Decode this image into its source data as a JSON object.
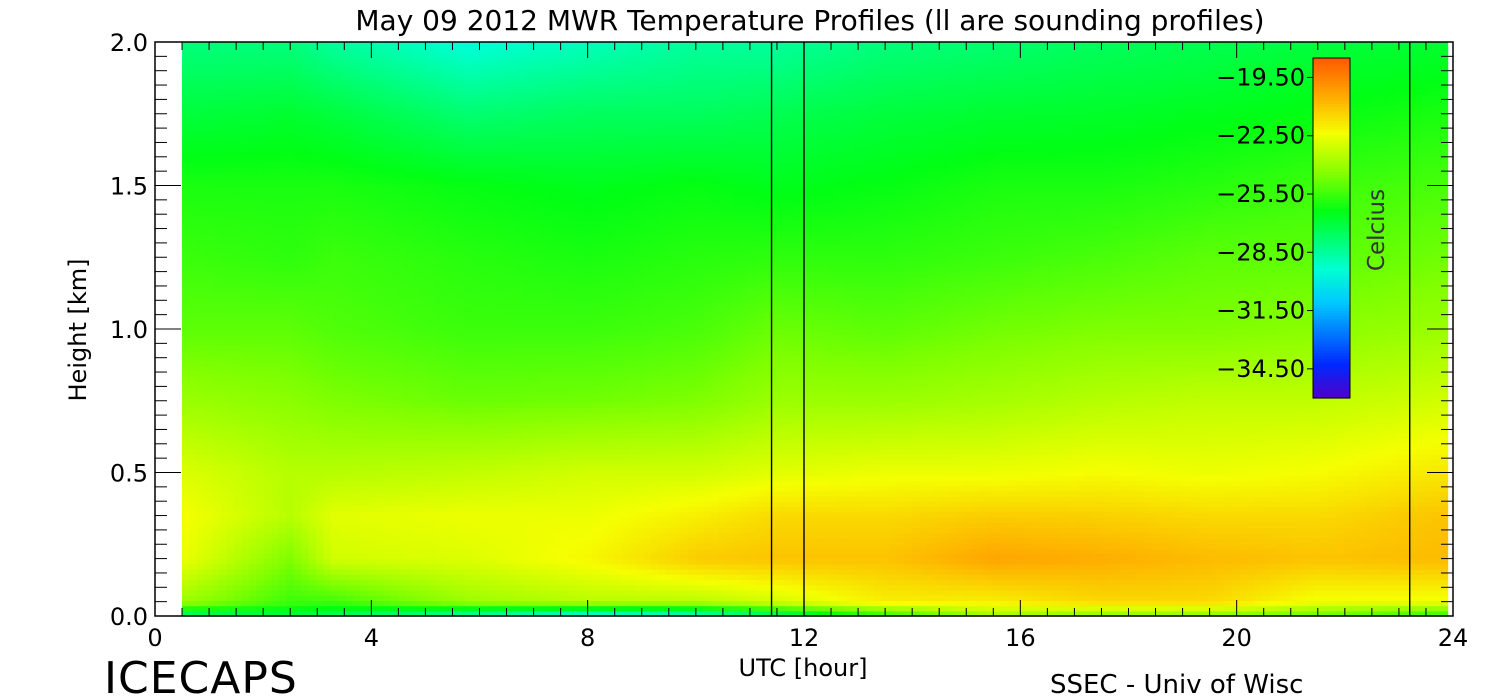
{
  "chart_data": {
    "type": "heatmap",
    "title": "May 09 2012 MWR Temperature Profiles (ll are sounding profiles)",
    "xlabel": "UTC [hour]",
    "ylabel": "Height [km]",
    "xlim": [
      0,
      24
    ],
    "ylim": [
      0,
      2.0
    ],
    "x_ticks": [
      "0",
      "4",
      "8",
      "12",
      "16",
      "20",
      "24"
    ],
    "y_ticks": [
      "0.0",
      "0.5",
      "1.0",
      "1.5",
      "2.0"
    ],
    "data_x_range": [
      0.5,
      23.9
    ],
    "sounding_times_utc": [
      11.4,
      12.0,
      23.2
    ],
    "colorbar": {
      "label": "Celcius",
      "range": [
        -36.0,
        -18.5
      ],
      "ticks": [
        "-19.50",
        "-22.50",
        "-25.50",
        "-28.50",
        "-31.50",
        "-34.50"
      ],
      "colormap": "rainbow"
    },
    "temperature_grid": {
      "times_utc": [
        0.5,
        2.5,
        3.3,
        5.8,
        8.0,
        10.0,
        11.5,
        13.5,
        15.5,
        17.5,
        19.5,
        21.5,
        23.9
      ],
      "heights_km": [
        0.0,
        0.05,
        0.2,
        0.35,
        0.5,
        0.75,
        1.0,
        1.25,
        1.5,
        1.75,
        2.0
      ],
      "values_c": [
        [
          -28.0,
          -27.0,
          -27.5,
          -29.0,
          -30.0,
          -29.5,
          -28.0,
          -26.0,
          -24.0,
          -24.5,
          -24.5,
          -25.0,
          -26.0
        ],
        [
          -24.0,
          -25.5,
          -25.5,
          -24.0,
          -23.5,
          -23.5,
          -23.0,
          -22.0,
          -22.0,
          -21.5,
          -21.5,
          -22.5,
          -22.5
        ],
        [
          -22.5,
          -24.5,
          -23.0,
          -22.8,
          -22.2,
          -21.2,
          -21.0,
          -21.0,
          -20.3,
          -20.5,
          -20.8,
          -21.0,
          -20.8
        ],
        [
          -22.3,
          -23.5,
          -22.7,
          -22.5,
          -22.5,
          -22.0,
          -21.5,
          -21.5,
          -21.2,
          -21.3,
          -21.5,
          -21.5,
          -21.0
        ],
        [
          -22.8,
          -23.5,
          -23.5,
          -23.3,
          -23.0,
          -23.0,
          -22.7,
          -22.5,
          -22.5,
          -22.3,
          -22.5,
          -22.3,
          -21.8
        ],
        [
          -24.0,
          -24.3,
          -24.5,
          -24.8,
          -24.7,
          -24.5,
          -24.0,
          -24.0,
          -23.8,
          -23.5,
          -23.3,
          -23.3,
          -23.0
        ],
        [
          -25.0,
          -25.0,
          -25.2,
          -25.5,
          -25.5,
          -25.3,
          -24.8,
          -25.0,
          -24.7,
          -24.5,
          -24.5,
          -24.3,
          -24.0
        ],
        [
          -25.5,
          -25.7,
          -25.5,
          -25.8,
          -26.0,
          -25.8,
          -25.7,
          -25.7,
          -25.5,
          -25.3,
          -25.0,
          -25.0,
          -24.7
        ],
        [
          -26.0,
          -26.0,
          -26.0,
          -26.3,
          -26.5,
          -26.3,
          -26.5,
          -26.3,
          -26.0,
          -26.0,
          -25.8,
          -25.5,
          -25.3
        ],
        [
          -27.0,
          -26.8,
          -27.0,
          -27.8,
          -27.5,
          -27.5,
          -27.3,
          -27.0,
          -26.8,
          -26.7,
          -26.5,
          -26.3,
          -26.0
        ],
        [
          -28.0,
          -28.0,
          -28.5,
          -29.5,
          -29.0,
          -28.5,
          -28.5,
          -28.0,
          -27.8,
          -27.5,
          -27.3,
          -27.0,
          -26.8
        ]
      ]
    }
  },
  "footer": {
    "brand": "ICECAPS",
    "credit": "SSEC - Univ of Wisc"
  }
}
